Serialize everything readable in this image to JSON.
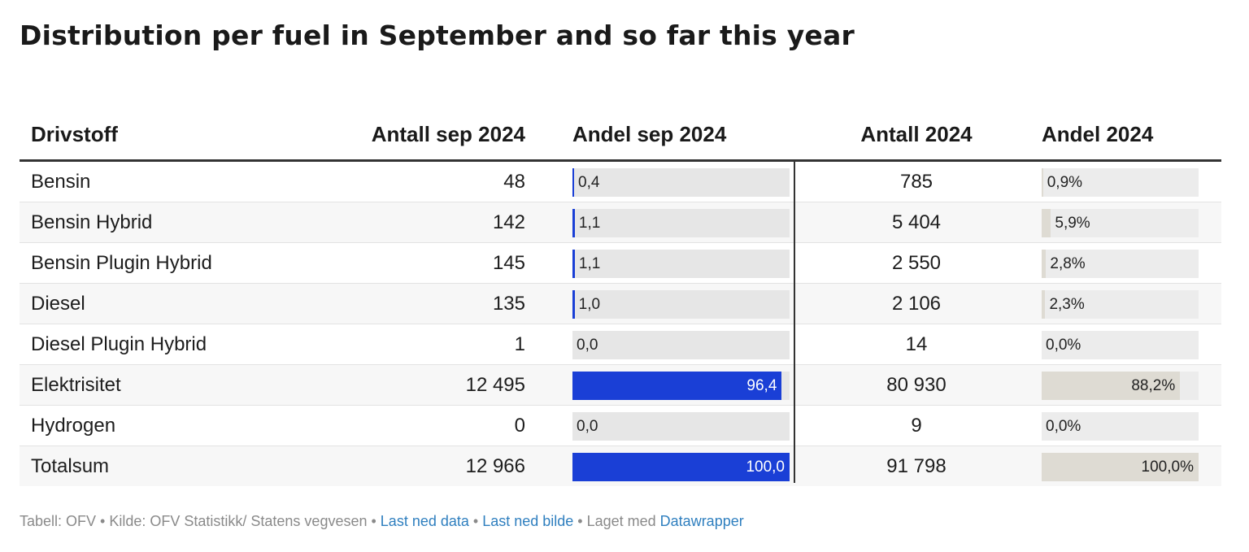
{
  "title": "Distribution per fuel in September and so far this year",
  "columns": [
    "Drivstoff",
    "Antall sep 2024",
    "Andel sep 2024",
    "Antall 2024",
    "Andel 2024"
  ],
  "colors": {
    "bar_sep": "#1a3fd6",
    "bar_year": "#dedbd3",
    "track": "#e6e6e6",
    "link": "#2f7fbf"
  },
  "chart_data": {
    "type": "table",
    "rows": [
      {
        "fuel": "Bensin",
        "count_sep": "48",
        "share_sep": 0.4,
        "share_sep_label": "0,4",
        "count_year": "785",
        "share_year": 0.9,
        "share_year_label": "0,9%"
      },
      {
        "fuel": "Bensin Hybrid",
        "count_sep": "142",
        "share_sep": 1.1,
        "share_sep_label": "1,1",
        "count_year": "5 404",
        "share_year": 5.9,
        "share_year_label": "5,9%"
      },
      {
        "fuel": "Bensin Plugin Hybrid",
        "count_sep": "145",
        "share_sep": 1.1,
        "share_sep_label": "1,1",
        "count_year": "2 550",
        "share_year": 2.8,
        "share_year_label": "2,8%"
      },
      {
        "fuel": "Diesel",
        "count_sep": "135",
        "share_sep": 1.0,
        "share_sep_label": "1,0",
        "count_year": "2 106",
        "share_year": 2.3,
        "share_year_label": "2,3%"
      },
      {
        "fuel": "Diesel Plugin Hybrid",
        "count_sep": "1",
        "share_sep": 0.0,
        "share_sep_label": "0,0",
        "count_year": "14",
        "share_year": 0.0,
        "share_year_label": "0,0%"
      },
      {
        "fuel": "Elektrisitet",
        "count_sep": "12 495",
        "share_sep": 96.4,
        "share_sep_label": "96,4",
        "count_year": "80 930",
        "share_year": 88.2,
        "share_year_label": "88,2%"
      },
      {
        "fuel": "Hydrogen",
        "count_sep": "0",
        "share_sep": 0.0,
        "share_sep_label": "0,0",
        "count_year": "9",
        "share_year": 0.0,
        "share_year_label": "0,0%"
      },
      {
        "fuel": "Totalsum",
        "count_sep": "12 966",
        "share_sep": 100.0,
        "share_sep_label": "100,0",
        "count_year": "91 798",
        "share_year": 100.0,
        "share_year_label": "100,0%"
      }
    ]
  },
  "footer": {
    "prefix": "Tabell: OFV • Kilde: OFV Statistikk/ Statens vegvesen • ",
    "link1": "Last ned data",
    "sep1": " • ",
    "link2": "Last ned bilde",
    "mid": " • Laget med ",
    "link3": "Datawrapper"
  }
}
